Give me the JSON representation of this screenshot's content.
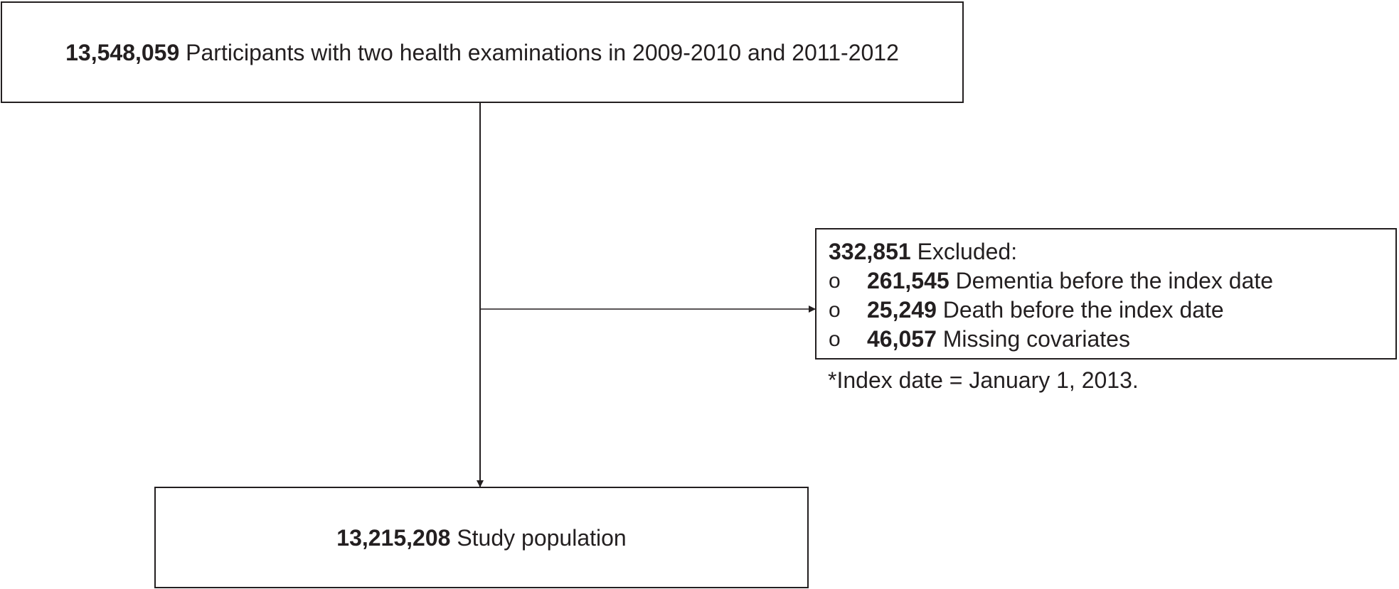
{
  "top_box": {
    "count": "13,548,059",
    "text": "Participants with two health examinations in 2009-2010 and 2011-2012"
  },
  "excluded_box": {
    "count": "332,851",
    "text": "Excluded:",
    "bullet_symbol": "o",
    "items": [
      {
        "count": "261,545",
        "text": "Dementia before the index date"
      },
      {
        "count": "25,249",
        "text": "Death before the index date"
      },
      {
        "count": "46,057",
        "text": "Missing covariates"
      }
    ]
  },
  "footnote": "*Index date = January 1, 2013.",
  "bottom_box": {
    "count": "13,215,208",
    "text": "Study population"
  },
  "colors": {
    "line": "#231f20",
    "text": "#231f20",
    "background": "#ffffff"
  }
}
